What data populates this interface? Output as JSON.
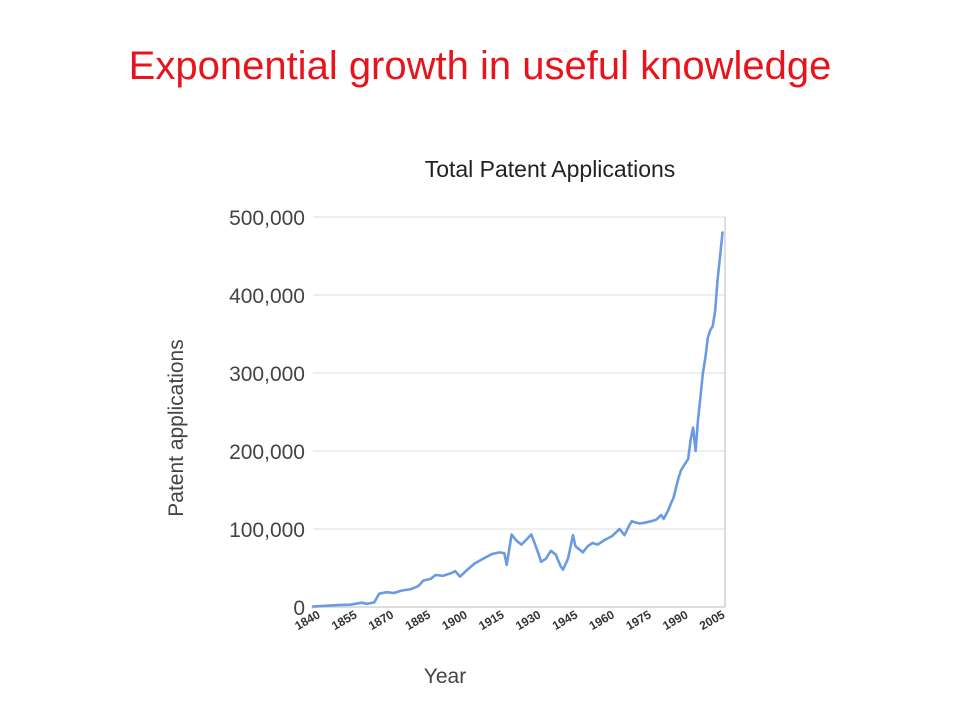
{
  "slide": {
    "title": "Exponential growth in useful knowledge"
  },
  "colors": {
    "title": "#e8141b",
    "series": "#6a9be2",
    "grid": "#dddddd",
    "axis": "#bbbbbb"
  },
  "chart_data": {
    "type": "line",
    "title": "Total Patent Applications",
    "xlabel": "Year",
    "ylabel": "Patent applications",
    "xlim": [
      1840,
      2008
    ],
    "ylim": [
      0,
      500000
    ],
    "y_ticks": [
      0,
      100000,
      200000,
      300000,
      400000,
      500000
    ],
    "y_tick_labels": [
      "0",
      "100,000",
      "200,000",
      "300,000",
      "400,000",
      "500,000"
    ],
    "x_tick_labels": [
      "1840",
      "1855",
      "1870",
      "1885",
      "1900",
      "1915",
      "1930",
      "1945",
      "1960",
      "1975",
      "1990",
      "2005"
    ],
    "x_ticks": [
      1840,
      1855,
      1870,
      1885,
      1900,
      1915,
      1930,
      1945,
      1960,
      1975,
      1990,
      2005
    ],
    "grid": true,
    "series": [
      {
        "x": [
          1840,
          1845,
          1850,
          1855,
          1860,
          1862,
          1865,
          1867,
          1870,
          1873,
          1876,
          1880,
          1883,
          1885,
          1888,
          1890,
          1893,
          1896,
          1898,
          1900,
          1903,
          1906,
          1910,
          1913,
          1916,
          1918,
          1919,
          1921,
          1923,
          1925,
          1929,
          1930,
          1932,
          1933,
          1935,
          1937,
          1939,
          1941,
          1942,
          1944,
          1946,
          1947,
          1949,
          1950,
          1952,
          1954,
          1956,
          1959,
          1962,
          1965,
          1967,
          1969,
          1970,
          1972,
          1973,
          1975,
          1978,
          1980,
          1982,
          1983,
          1985,
          1986,
          1987,
          1989,
          1990,
          1991,
          1992,
          1993,
          1994,
          1995,
          1996,
          1997,
          1998,
          1999,
          2000,
          2001,
          2002,
          2003,
          2004,
          2005,
          2006,
          2007
        ],
        "y": [
          500,
          1500,
          2500,
          3000,
          5500,
          4000,
          6000,
          17000,
          19000,
          18000,
          21000,
          23000,
          27000,
          34000,
          36000,
          41000,
          40000,
          43000,
          46000,
          39000,
          48000,
          56000,
          63000,
          68000,
          70000,
          69000,
          54000,
          93000,
          85000,
          80000,
          93000,
          85000,
          68000,
          58000,
          62000,
          72000,
          67000,
          52000,
          48000,
          62000,
          92000,
          78000,
          73000,
          70000,
          78000,
          82000,
          80000,
          86000,
          91000,
          100000,
          92000,
          105000,
          110000,
          108000,
          107000,
          108000,
          110000,
          112000,
          118000,
          113000,
          125000,
          133000,
          140000,
          165000,
          175000,
          180000,
          185000,
          190000,
          215000,
          230000,
          200000,
          240000,
          270000,
          300000,
          320000,
          345000,
          355000,
          360000,
          380000,
          420000,
          450000,
          480000
        ]
      }
    ]
  }
}
